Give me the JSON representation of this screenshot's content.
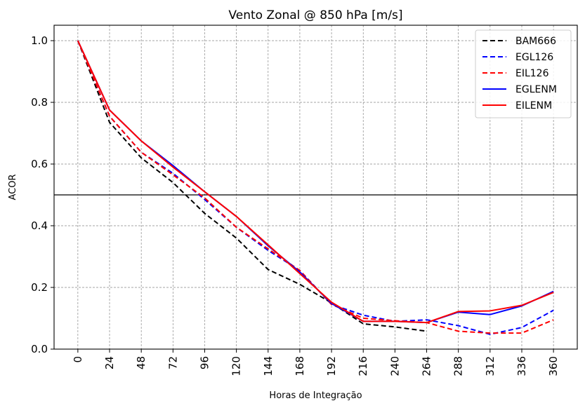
{
  "chart_data": {
    "type": "line",
    "title": "Vento Zonal @ 850 hPa [m/s]",
    "xlabel": "Horas de Integração",
    "ylabel": "ACOR",
    "x": [
      0,
      24,
      48,
      72,
      96,
      120,
      144,
      168,
      192,
      216,
      240,
      264,
      288,
      312,
      336,
      360
    ],
    "x_tick_labels": [
      "0",
      "24",
      "48",
      "72",
      "96",
      "120",
      "144",
      "168",
      "192",
      "216",
      "240",
      "264",
      "288",
      "312",
      "336",
      "360"
    ],
    "xlim": [
      -18,
      378
    ],
    "ylim": [
      0.0,
      1.05
    ],
    "y_ticks": [
      0.0,
      0.2,
      0.4,
      0.6,
      0.8,
      1.0
    ],
    "y_tick_labels": [
      "0.0",
      "0.2",
      "0.4",
      "0.6",
      "0.8",
      "1.0"
    ],
    "reference_line": 0.5,
    "grid": true,
    "legend_position": "upper right",
    "series": [
      {
        "name": "BAM666",
        "color": "#000000",
        "dashed": true,
        "values": [
          1.0,
          0.735,
          0.62,
          0.54,
          0.44,
          0.36,
          0.258,
          0.21,
          0.15,
          0.082,
          0.072,
          0.058,
          null,
          null,
          null,
          null
        ]
      },
      {
        "name": "EGL126",
        "color": "#0000ff",
        "dashed": true,
        "values": [
          1.0,
          0.755,
          0.638,
          0.57,
          0.485,
          0.395,
          0.32,
          0.255,
          0.145,
          0.11,
          0.09,
          0.095,
          0.076,
          0.048,
          0.07,
          0.126
        ]
      },
      {
        "name": "EIL126",
        "color": "#ff0000",
        "dashed": true,
        "values": [
          1.0,
          0.755,
          0.638,
          0.565,
          0.49,
          0.395,
          0.325,
          0.255,
          0.145,
          0.1,
          0.092,
          0.086,
          0.058,
          0.052,
          0.052,
          0.095
        ]
      },
      {
        "name": "EGLENM",
        "color": "#0000ff",
        "dashed": false,
        "values": [
          1.0,
          0.775,
          0.675,
          0.595,
          0.51,
          0.43,
          0.335,
          0.25,
          0.148,
          0.09,
          0.09,
          0.086,
          0.12,
          0.112,
          0.14,
          0.187
        ]
      },
      {
        "name": "EILENM",
        "color": "#ff0000",
        "dashed": false,
        "values": [
          1.0,
          0.775,
          0.675,
          0.59,
          0.51,
          0.43,
          0.338,
          0.245,
          0.152,
          0.09,
          0.09,
          0.086,
          0.122,
          0.124,
          0.142,
          0.184
        ]
      }
    ]
  }
}
